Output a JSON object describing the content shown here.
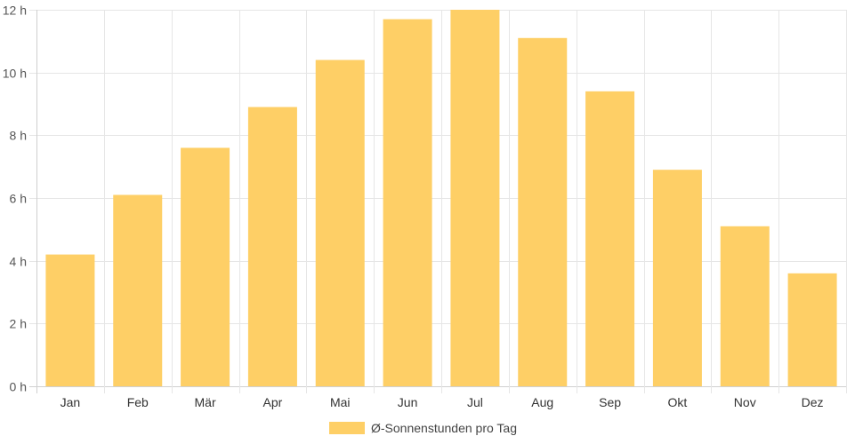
{
  "chart_data": {
    "type": "bar",
    "categories": [
      "Jan",
      "Feb",
      "Mär",
      "Apr",
      "Mai",
      "Jun",
      "Jul",
      "Aug",
      "Sep",
      "Okt",
      "Nov",
      "Dez"
    ],
    "series": [
      {
        "name": "Ø-Sonnenstunden pro Tag",
        "values": [
          4.2,
          6.1,
          7.6,
          8.9,
          10.4,
          11.7,
          12.0,
          11.1,
          9.4,
          6.9,
          5.1,
          3.6
        ],
        "color": "#fecf66"
      }
    ],
    "y_ticks": [
      "0 h",
      "2 h",
      "4 h",
      "6 h",
      "8 h",
      "10 h",
      "12 h"
    ],
    "ylim": [
      0,
      12
    ],
    "grid": true,
    "legend_position": "bottom"
  }
}
